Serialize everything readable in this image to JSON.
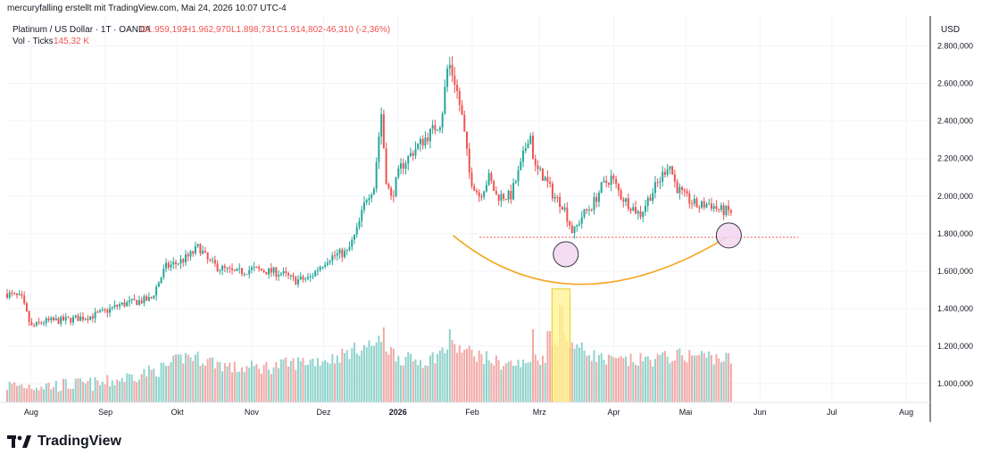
{
  "header": {
    "attribution": "mercuryfalling erstellt mit TradingView.com, Mai 24, 2026 10:07 UTC-4"
  },
  "legend": {
    "symbol": "Platinum / US Dollar · 1T · OANDA",
    "open": "O1.959,192",
    "high": "H1.962,970",
    "low": "L1.898,731",
    "close": "C1.914,802",
    "change": "-46,310 (-2,36%)",
    "volume_label": "Vol · Ticks",
    "volume_value": "145,32 K"
  },
  "colors": {
    "up": "#26a69a",
    "down": "#ef5350",
    "up_vol": "#8fd3cc",
    "down_vol": "#f2a9a6",
    "curve": "#f5a623",
    "highlight": "#fff59d",
    "circle_fill": "#f3d6f0",
    "dotted_line": "#ef5350"
  },
  "footer": {
    "brand": "TradingView",
    "icon": "tradingview-logo-icon"
  },
  "chart_data": {
    "type": "candlestick",
    "currency": "USD",
    "y_ticks": [
      "2.800,000",
      "2.600,000",
      "2.400,000",
      "2.200,000",
      "2.000,000",
      "1.800,000",
      "1.600,000",
      "1.400,000",
      "1.200,000",
      "1.000,000"
    ],
    "y_tick_values": [
      2800,
      2600,
      2400,
      2200,
      2000,
      1800,
      1600,
      1400,
      1200,
      1000
    ],
    "y_range": [
      900,
      2960
    ],
    "x_labels": [
      "Aug",
      "Sep",
      "Okt",
      "Nov",
      "Dez",
      "2026",
      "Feb",
      "Mrz",
      "Apr",
      "Mai",
      "Jun",
      "Jul",
      "Aug"
    ],
    "x_label_days": [
      10,
      41,
      71,
      102,
      132,
      163,
      194,
      222,
      253,
      283,
      314,
      344,
      375
    ],
    "x_range_days": [
      0,
      385
    ],
    "last_candle_day": 302,
    "price_anchors": [
      [
        0,
        1480
      ],
      [
        6,
        1455
      ],
      [
        10,
        1300
      ],
      [
        15,
        1330
      ],
      [
        25,
        1340
      ],
      [
        35,
        1360
      ],
      [
        40,
        1380
      ],
      [
        47,
        1420
      ],
      [
        55,
        1440
      ],
      [
        60,
        1450
      ],
      [
        66,
        1620
      ],
      [
        72,
        1650
      ],
      [
        76,
        1680
      ],
      [
        80,
        1730
      ],
      [
        84,
        1650
      ],
      [
        88,
        1620
      ],
      [
        95,
        1590
      ],
      [
        102,
        1610
      ],
      [
        108,
        1600
      ],
      [
        114,
        1590
      ],
      [
        120,
        1550
      ],
      [
        126,
        1560
      ],
      [
        130,
        1620
      ],
      [
        134,
        1670
      ],
      [
        138,
        1690
      ],
      [
        142,
        1700
      ],
      [
        146,
        1820
      ],
      [
        150,
        2000
      ],
      [
        153,
        2050
      ],
      [
        156,
        2450
      ],
      [
        158,
        2100
      ],
      [
        160,
        1980
      ],
      [
        164,
        2150
      ],
      [
        170,
        2250
      ],
      [
        176,
        2330
      ],
      [
        181,
        2400
      ],
      [
        184,
        2720
      ],
      [
        187,
        2600
      ],
      [
        190,
        2400
      ],
      [
        193,
        2100
      ],
      [
        197,
        2000
      ],
      [
        201,
        2100
      ],
      [
        204,
        2000
      ],
      [
        210,
        2000
      ],
      [
        214,
        2150
      ],
      [
        218,
        2350
      ],
      [
        220,
        2150
      ],
      [
        224,
        2100
      ],
      [
        228,
        2000
      ],
      [
        232,
        1950
      ],
      [
        236,
        1800
      ],
      [
        240,
        1900
      ],
      [
        244,
        1950
      ],
      [
        248,
        2050
      ],
      [
        252,
        2100
      ],
      [
        256,
        2000
      ],
      [
        260,
        1950
      ],
      [
        264,
        1900
      ],
      [
        268,
        2000
      ],
      [
        272,
        2080
      ],
      [
        276,
        2180
      ],
      [
        279,
        2050
      ],
      [
        283,
        1990
      ],
      [
        288,
        1945
      ],
      [
        293,
        1960
      ],
      [
        297,
        1925
      ],
      [
        302,
        1915
      ]
    ],
    "volume_baseline": 900,
    "volume_range_note": "Volume shares the price axis scale for display",
    "volume_anchors": [
      [
        0,
        990
      ],
      [
        20,
        990
      ],
      [
        40,
        1000
      ],
      [
        55,
        1050
      ],
      [
        65,
        1080
      ],
      [
        75,
        1150
      ],
      [
        85,
        1120
      ],
      [
        95,
        1080
      ],
      [
        110,
        1090
      ],
      [
        125,
        1120
      ],
      [
        135,
        1130
      ],
      [
        145,
        1180
      ],
      [
        155,
        1220
      ],
      [
        165,
        1130
      ],
      [
        175,
        1120
      ],
      [
        185,
        1200
      ],
      [
        195,
        1160
      ],
      [
        205,
        1110
      ],
      [
        215,
        1100
      ],
      [
        225,
        1150
      ],
      [
        230,
        1250
      ],
      [
        235,
        1220
      ],
      [
        240,
        1180
      ],
      [
        250,
        1120
      ],
      [
        260,
        1120
      ],
      [
        270,
        1130
      ],
      [
        280,
        1150
      ],
      [
        290,
        1150
      ],
      [
        302,
        1130
      ]
    ],
    "volume_spikes": [
      [
        157,
        1300
      ],
      [
        185,
        1290
      ],
      [
        219,
        1290
      ],
      [
        231,
        1420
      ],
      [
        226,
        1280
      ]
    ],
    "annotations": {
      "support_level": 1780,
      "support_start_day": 197,
      "support_end_day": 330,
      "curve_points": [
        [
          186,
          1790
        ],
        [
          235,
          1550
        ],
        [
          300,
          1780
        ]
      ],
      "circles": [
        {
          "day": 233,
          "price": 1690
        },
        {
          "day": 301,
          "price": 1790
        }
      ],
      "highlight_days": [
        228,
        234
      ],
      "highlight_top": 1505
    }
  }
}
